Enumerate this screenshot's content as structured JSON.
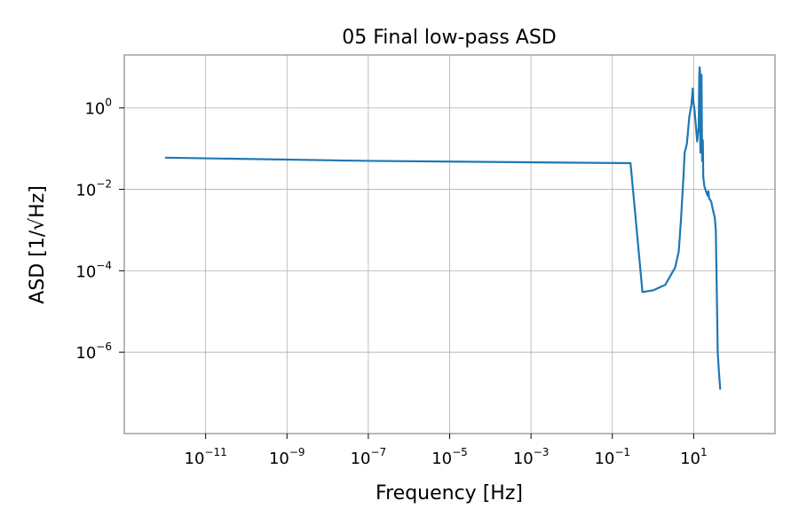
{
  "chart_data": {
    "type": "line",
    "title": "05 Final low-pass ASD",
    "xlabel": "Frequency [Hz]",
    "ylabel": "ASD [1/√Hz]",
    "xscale": "log",
    "yscale": "log",
    "xlim": [
      1e-13,
      1000.0
    ],
    "ylim": [
      1e-08,
      20
    ],
    "grid": true,
    "xticks": [
      {
        "value": 1e-11,
        "base": "10",
        "exp": "−11"
      },
      {
        "value": 1e-09,
        "base": "10",
        "exp": "−9"
      },
      {
        "value": 1e-07,
        "base": "10",
        "exp": "−7"
      },
      {
        "value": 1e-05,
        "base": "10",
        "exp": "−5"
      },
      {
        "value": 0.001,
        "base": "10",
        "exp": "−3"
      },
      {
        "value": 0.1,
        "base": "10",
        "exp": "−1"
      },
      {
        "value": 10,
        "base": "10",
        "exp": "1"
      }
    ],
    "yticks": [
      {
        "value": 1,
        "base": "10",
        "exp": "0"
      },
      {
        "value": 0.01,
        "base": "10",
        "exp": "−2"
      },
      {
        "value": 0.0001,
        "base": "10",
        "exp": "−4"
      },
      {
        "value": 1e-06,
        "base": "10",
        "exp": "−6"
      }
    ],
    "series": [
      {
        "color": "#1f77b4",
        "points": [
          [
            1e-12,
            0.06
          ],
          [
            1e-07,
            0.05
          ],
          [
            0.28,
            0.044
          ],
          [
            0.55,
            3e-05
          ],
          [
            1.0,
            3.3e-05
          ],
          [
            2.0,
            4.5e-05
          ],
          [
            3.5,
            0.00012
          ],
          [
            4.3,
            0.0003
          ],
          [
            4.9,
            0.002
          ],
          [
            5.6,
            0.02
          ],
          [
            6.0,
            0.08
          ],
          [
            6.8,
            0.13
          ],
          [
            7.8,
            0.6
          ],
          [
            8.8,
            1.2
          ],
          [
            9.5,
            3.0
          ],
          [
            9.8,
            1.5
          ],
          [
            10.6,
            0.8
          ],
          [
            11.5,
            0.3
          ],
          [
            12.2,
            0.15
          ],
          [
            13.3,
            0.35
          ],
          [
            13.7,
            6.0
          ],
          [
            14.0,
            10.0
          ],
          [
            14.3,
            8.0
          ],
          [
            14.6,
            0.08
          ],
          [
            15.1,
            0.9
          ],
          [
            15.6,
            6.5
          ],
          [
            16.1,
            0.05
          ],
          [
            16.8,
            0.16
          ],
          [
            17.2,
            0.02
          ],
          [
            18.3,
            0.012
          ],
          [
            20.0,
            0.009
          ],
          [
            22.0,
            0.007
          ],
          [
            23.0,
            0.009
          ],
          [
            24.0,
            0.006
          ],
          [
            27.0,
            0.005
          ],
          [
            30.0,
            0.003
          ],
          [
            33.0,
            0.002
          ],
          [
            35.0,
            0.001
          ],
          [
            37.0,
            3e-05
          ],
          [
            39.0,
            1e-06
          ],
          [
            42.0,
            3e-07
          ],
          [
            45.0,
            1.2e-07
          ]
        ]
      }
    ]
  }
}
